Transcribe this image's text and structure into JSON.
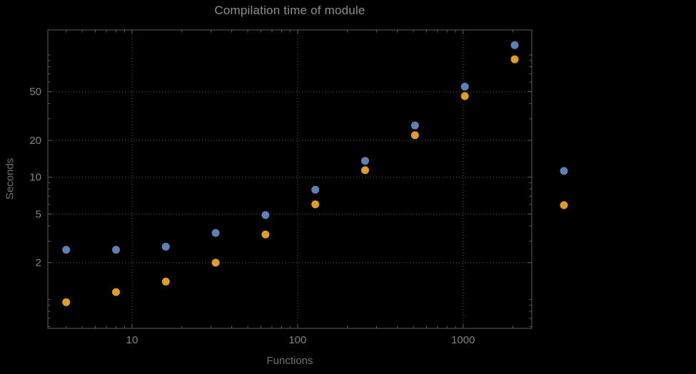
{
  "chart_data": {
    "type": "scatter",
    "title": "Compilation time of module",
    "xlabel": "Functions",
    "ylabel": "Seconds",
    "x_scale": "log",
    "y_scale": "log",
    "xlim": [
      3.1,
      2600
    ],
    "ylim": [
      0.58,
      160
    ],
    "x_ticks": [
      10,
      100,
      1000
    ],
    "y_ticks": [
      2,
      5,
      10,
      20,
      50
    ],
    "grid": "dotted",
    "legend_position": "right-outside",
    "legend_labels_visible": false,
    "x": [
      4,
      8,
      16,
      32,
      64,
      128,
      256,
      512,
      1024,
      2048
    ],
    "series": [
      {
        "name": "series-blue",
        "color": "#5E81B5",
        "values": [
          2.55,
          2.55,
          2.7,
          3.5,
          4.9,
          7.9,
          13.6,
          26.5,
          55,
          120
        ]
      },
      {
        "name": "series-orange",
        "color": "#E19C24",
        "values": [
          0.95,
          1.15,
          1.4,
          2.0,
          3.4,
          6.0,
          11.4,
          22,
          46,
          92
        ]
      }
    ]
  },
  "colors": {
    "background": "#000000",
    "frame": "#5e5e5e",
    "grid": "#525252",
    "title_text": "#8e8e8e",
    "axis_label_text": "#6f6f6f",
    "tick_text": "#838383"
  }
}
